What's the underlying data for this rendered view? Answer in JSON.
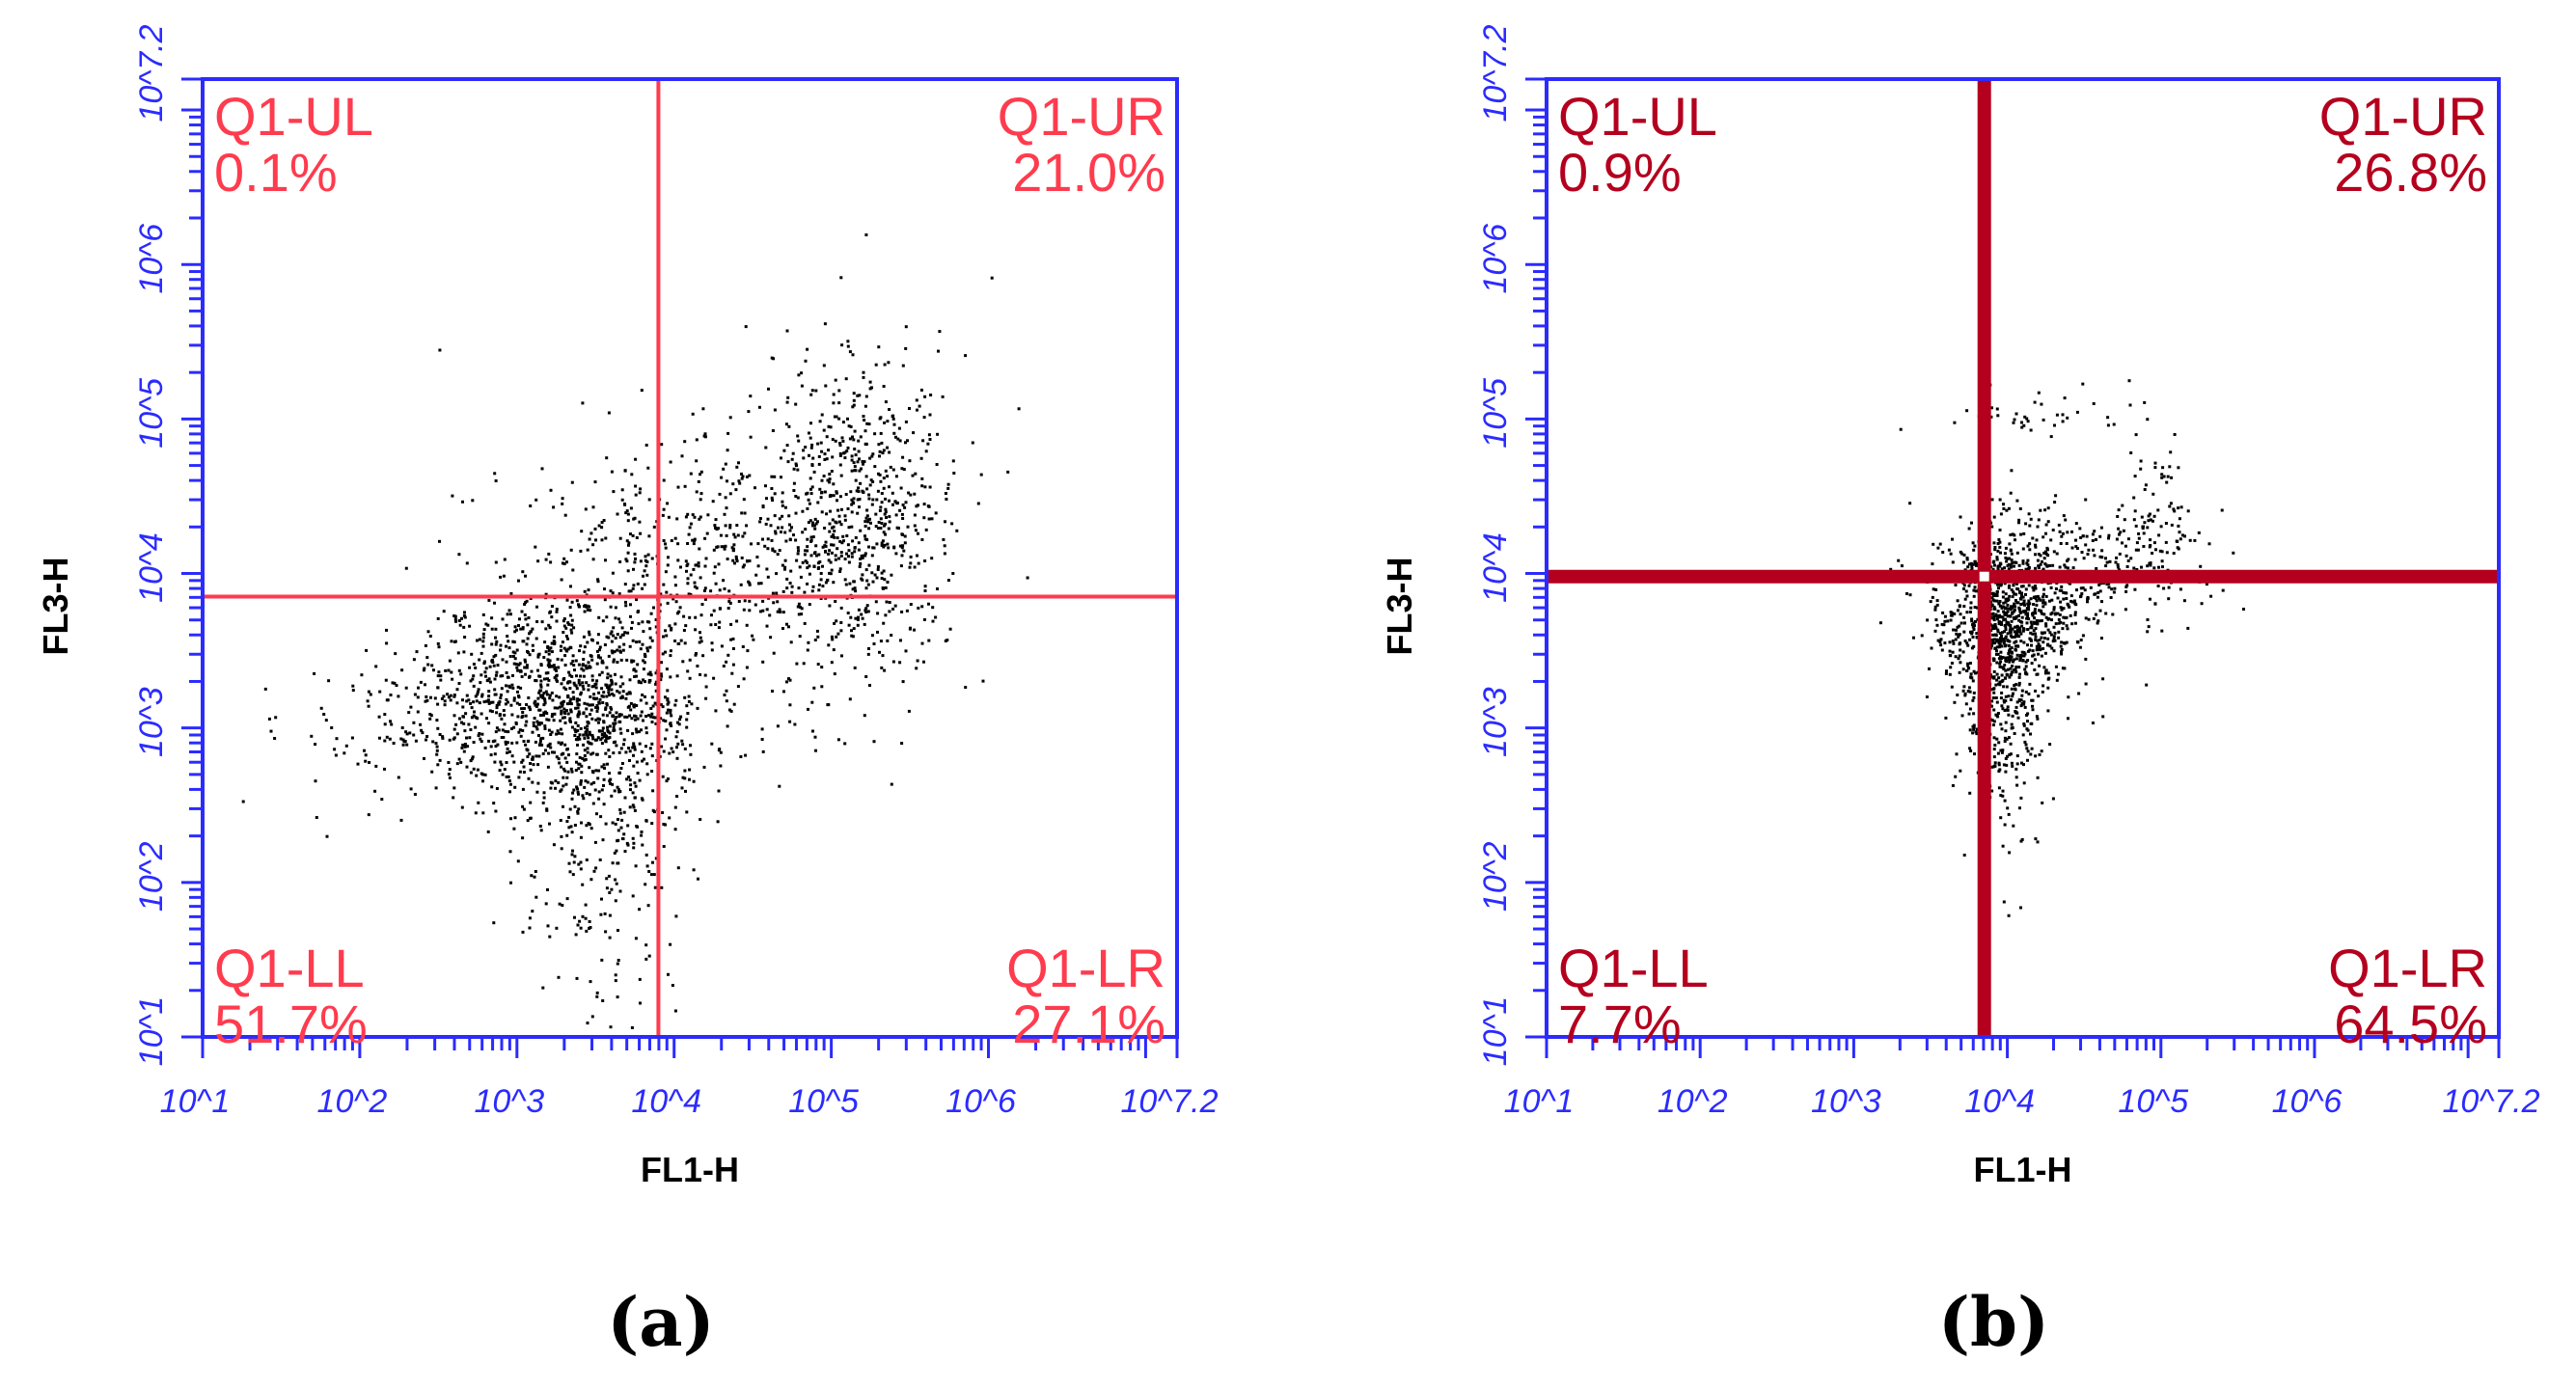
{
  "chart_data": [
    {
      "type": "scatter",
      "panel_label": "(a)",
      "xlabel": "FL1-H",
      "ylabel": "FL3-H",
      "xscale": "log",
      "yscale": "log",
      "xlim": [
        1,
        7.2
      ],
      "ylim": [
        1,
        7.2
      ],
      "x_tick_labels": [
        "10^1",
        "10^2",
        "10^3",
        "10^4",
        "10^5",
        "10^6",
        "10^7.2"
      ],
      "y_tick_labels": [
        "10^1",
        "10^2",
        "10^3",
        "10^4",
        "10^5",
        "10^6",
        "10^7.2"
      ],
      "gate": {
        "x": 3.9,
        "y": 3.85
      },
      "gate_color": "#ff3b4e",
      "quadrants": [
        {
          "name": "Q1-UL",
          "percent": "0.1%"
        },
        {
          "name": "Q1-UR",
          "percent": "21.0%"
        },
        {
          "name": "Q1-LL",
          "percent": "51.7%"
        },
        {
          "name": "Q1-LR",
          "percent": "27.1%"
        }
      ],
      "clusters": [
        {
          "cx": 3.3,
          "cy": 3.2,
          "sx": 0.45,
          "sy": 0.35,
          "n": 1300
        },
        {
          "cx": 4.2,
          "cy": 4.1,
          "sx": 0.55,
          "sy": 0.4,
          "n": 500
        },
        {
          "cx": 5.15,
          "cy": 4.35,
          "sx": 0.3,
          "sy": 0.55,
          "n": 700
        },
        {
          "cx": 3.55,
          "cy": 2.3,
          "sx": 0.25,
          "sy": 0.5,
          "n": 250
        },
        {
          "cx": 2.4,
          "cy": 3.0,
          "sx": 0.5,
          "sy": 0.3,
          "n": 120
        }
      ]
    },
    {
      "type": "scatter",
      "panel_label": "(b)",
      "xlabel": "FL1-H",
      "ylabel": "FL3-H",
      "xscale": "log",
      "yscale": "log",
      "xlim": [
        1,
        7.2
      ],
      "ylim": [
        1,
        7.2
      ],
      "x_tick_labels": [
        "10^1",
        "10^2",
        "10^3",
        "10^4",
        "10^5",
        "10^6",
        "10^7.2"
      ],
      "y_tick_labels": [
        "10^1",
        "10^2",
        "10^3",
        "10^4",
        "10^5",
        "10^6",
        "10^7.2"
      ],
      "gate": {
        "x": 3.85,
        "y": 3.98
      },
      "gate_color": "#b4001e",
      "quadrants": [
        {
          "name": "Q1-UL",
          "percent": "0.9%"
        },
        {
          "name": "Q1-UR",
          "percent": "26.8%"
        },
        {
          "name": "Q1-LL",
          "percent": "7.7%"
        },
        {
          "name": "Q1-LR",
          "percent": "64.5%"
        }
      ],
      "clusters": [
        {
          "cx": 4.0,
          "cy": 3.75,
          "sx": 0.25,
          "sy": 0.28,
          "n": 900
        },
        {
          "cx": 3.95,
          "cy": 3.2,
          "sx": 0.14,
          "sy": 0.45,
          "n": 400
        },
        {
          "cx": 4.5,
          "cy": 4.05,
          "sx": 0.4,
          "sy": 0.18,
          "n": 250
        },
        {
          "cx": 5.0,
          "cy": 4.4,
          "sx": 0.12,
          "sy": 0.35,
          "n": 80
        },
        {
          "cx": 4.2,
          "cy": 5.0,
          "sx": 0.35,
          "sy": 0.1,
          "n": 40
        }
      ]
    }
  ]
}
